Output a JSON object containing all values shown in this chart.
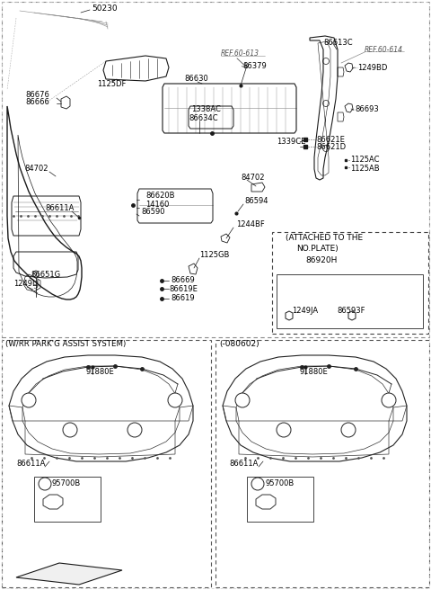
{
  "bg_color": "#ffffff",
  "lc": "#1a1a1a",
  "tc": "#000000",
  "fig_w": 4.8,
  "fig_h": 6.56,
  "dpi": 100,
  "labels_top": [
    [
      "50230",
      102,
      10
    ],
    [
      "REF.60-613",
      248,
      60
    ],
    [
      "86613C",
      360,
      47
    ],
    [
      "REF.60-614",
      415,
      55
    ],
    [
      "1125DF",
      108,
      95
    ],
    [
      "86630",
      205,
      88
    ],
    [
      "86379",
      270,
      73
    ],
    [
      "86676",
      28,
      105
    ],
    [
      "86666",
      28,
      114
    ],
    [
      "1338AC",
      213,
      122
    ],
    [
      "86634C",
      210,
      131
    ],
    [
      "1249BD",
      398,
      75
    ],
    [
      "86693",
      400,
      122
    ],
    [
      "84702",
      27,
      188
    ],
    [
      "1339CE",
      308,
      158
    ],
    [
      "86621E",
      352,
      155
    ],
    [
      "86621D",
      352,
      164
    ],
    [
      "1125AC",
      390,
      178
    ],
    [
      "1125AB",
      390,
      187
    ],
    [
      "86611A",
      50,
      232
    ],
    [
      "86620B",
      162,
      218
    ],
    [
      "14160",
      162,
      227
    ],
    [
      "86590",
      157,
      236
    ],
    [
      "84702",
      268,
      198
    ],
    [
      "86594",
      272,
      224
    ],
    [
      "1244BF",
      263,
      250
    ],
    [
      "1125GB",
      222,
      284
    ],
    [
      "86651G",
      34,
      306
    ],
    [
      "1249LJ",
      15,
      316
    ],
    [
      "86669",
      190,
      310
    ],
    [
      "86619E",
      188,
      320
    ],
    [
      "86619",
      190,
      331
    ]
  ]
}
